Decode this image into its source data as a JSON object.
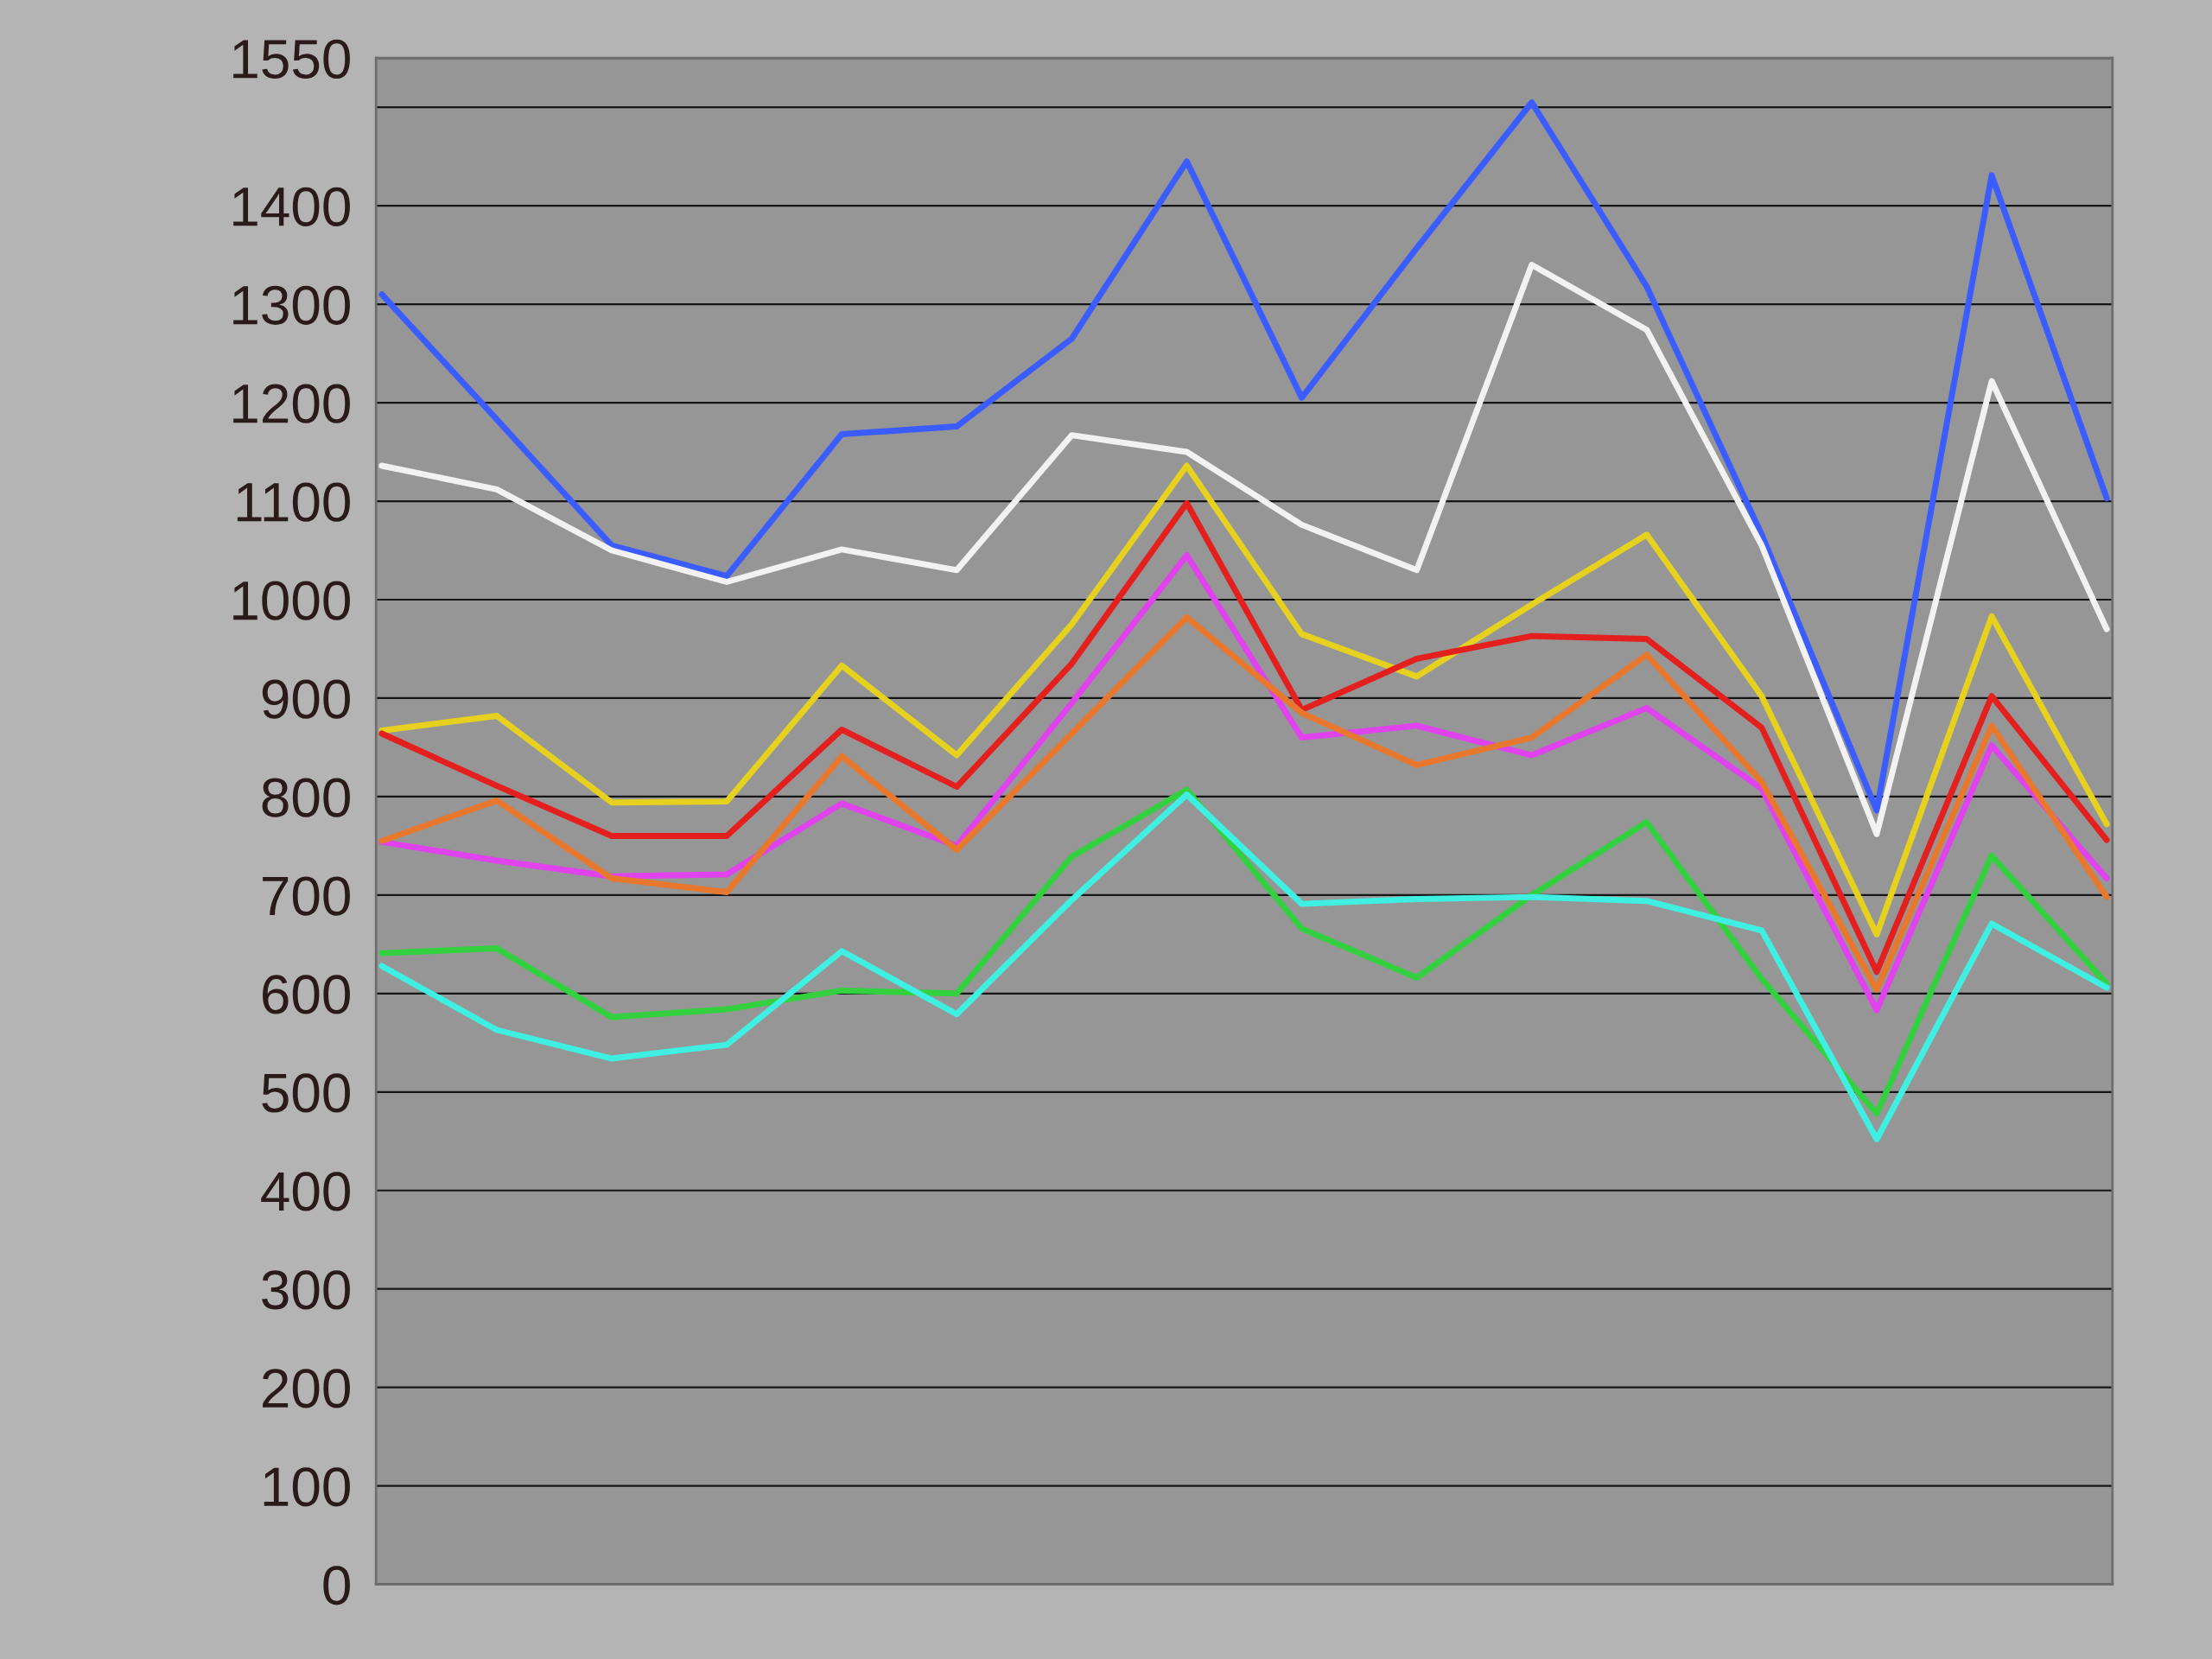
{
  "chart_data": {
    "type": "line",
    "categories": [
      null,
      null,
      null,
      null,
      null,
      null,
      null,
      null,
      null,
      null,
      null,
      null,
      null,
      null,
      null,
      null
    ],
    "series": [
      {
        "color": "#3b5cff",
        "values": [
          1310,
          1183,
          1055,
          1024,
          1168,
          1176,
          1265,
          1445,
          1205,
          1357,
          1505,
          1318,
          1066,
          786,
          1431,
          1103
        ]
      },
      {
        "color": "#f2f2f2",
        "values": [
          1136,
          1112,
          1050,
          1018,
          1051,
          1030,
          1167,
          1150,
          1076,
          1030,
          1340,
          1274,
          1055,
          762,
          1222,
          970
        ]
      },
      {
        "color": "#e6d21e",
        "values": [
          867,
          882,
          794,
          795,
          933,
          842,
          975,
          1136,
          965,
          922,
          995,
          1066,
          902,
          660,
          983,
          772
        ]
      },
      {
        "color": "#e3201e",
        "values": [
          864,
          811,
          760,
          760,
          868,
          810,
          935,
          1098,
          888,
          940,
          963,
          960,
          870,
          622,
          902,
          756
        ]
      },
      {
        "color": "#e043ee",
        "values": [
          754,
          735,
          719,
          721,
          793,
          750,
          895,
          1045,
          860,
          872,
          842,
          890,
          808,
          583,
          852,
          717
        ]
      },
      {
        "color": "#e8782e",
        "values": [
          755,
          796,
          717,
          703,
          841,
          746,
          864,
          982,
          885,
          832,
          860,
          944,
          815,
          604,
          872,
          698
        ]
      },
      {
        "color": "#33d13f",
        "values": [
          641,
          646,
          576,
          584,
          603,
          600,
          739,
          807,
          666,
          616,
          700,
          774,
          615,
          478,
          740,
          610
        ]
      },
      {
        "color": "#3ff0e2",
        "values": [
          628,
          563,
          534,
          548,
          643,
          579,
          695,
          802,
          691,
          696,
          698,
          694,
          664,
          452,
          671,
          606
        ]
      }
    ],
    "ylim": [
      0,
      1550
    ],
    "yticks": [
      0,
      100,
      200,
      300,
      400,
      500,
      600,
      700,
      800,
      900,
      1000,
      1100,
      1200,
      1300,
      1400,
      {
        "value": 1500,
        "label": null
      },
      1550
    ],
    "grid": "y",
    "tick_labels": "y",
    "line_style": "solid"
  }
}
